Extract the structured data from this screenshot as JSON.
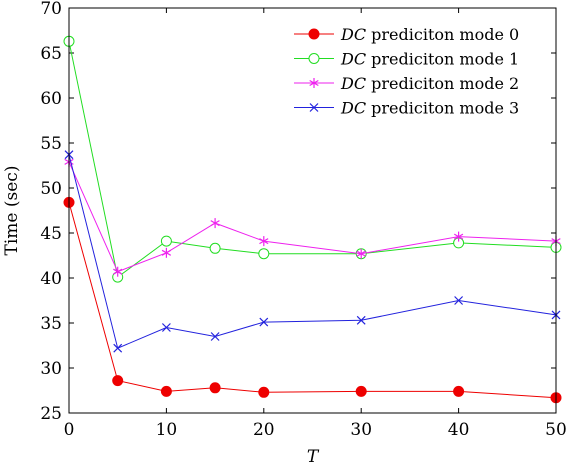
{
  "chart_data": {
    "type": "line",
    "xlabel": "T",
    "ylabel": "Time (sec)",
    "x": [
      0,
      5,
      10,
      15,
      20,
      30,
      40,
      50
    ],
    "xlim": [
      0,
      50
    ],
    "ylim": [
      25,
      70
    ],
    "xticks": [
      0,
      10,
      20,
      30,
      40,
      50
    ],
    "yticks": [
      25,
      30,
      35,
      40,
      45,
      50,
      55,
      60,
      65,
      70
    ],
    "grid": false,
    "legend_position": "top-right",
    "series": [
      {
        "name_prefix": "DC",
        "name": " prediciton mode 0",
        "color": "#ee0000",
        "marker": "filled-circle",
        "values": [
          48.4,
          28.6,
          27.4,
          27.8,
          27.3,
          27.4,
          27.4,
          26.7
        ]
      },
      {
        "name_prefix": "DC",
        "name": " prediciton mode 1",
        "color": "#22dd22",
        "marker": "open-circle",
        "values": [
          66.3,
          40.1,
          44.1,
          43.3,
          42.7,
          42.7,
          43.9,
          43.4
        ]
      },
      {
        "name_prefix": "DC",
        "name": " prediciton mode 2",
        "color": "#ee22ee",
        "marker": "asterisk",
        "values": [
          52.9,
          40.7,
          42.8,
          46.1,
          44.1,
          42.7,
          44.6,
          44.1
        ]
      },
      {
        "name_prefix": "DC",
        "name": " prediciton mode 3",
        "color": "#2222dd",
        "marker": "x",
        "values": [
          53.7,
          32.2,
          34.5,
          33.5,
          35.1,
          35.3,
          37.5,
          35.9
        ]
      }
    ]
  }
}
